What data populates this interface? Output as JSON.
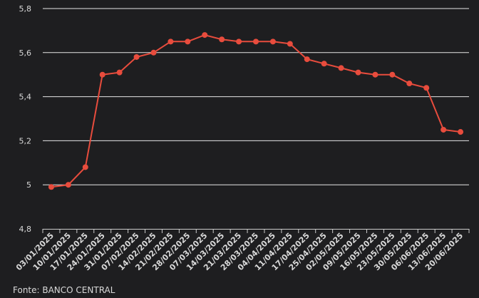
{
  "chart_data": {
    "type": "line",
    "title": "",
    "xlabel": "",
    "ylabel": "",
    "categories": [
      "03/01/2025",
      "10/01/2025",
      "17/01/2025",
      "24/01/2025",
      "31/01/2025",
      "07/02/2025",
      "14/02/2025",
      "21/02/2025",
      "28/02/2025",
      "07/03/2025",
      "14/03/2025",
      "21/03/2025",
      "28/03/2025",
      "04/04/2025",
      "11/04/2025",
      "17/04/2025",
      "25/04/2025",
      "02/05/2025",
      "09/05/2025",
      "16/05/2025",
      "23/05/2025",
      "30/05/2025",
      "06/06/2025",
      "13/06/2025",
      "20/06/2025"
    ],
    "series": [
      {
        "values": [
          4.99,
          5.0,
          5.08,
          5.5,
          5.51,
          5.58,
          5.6,
          5.65,
          5.65,
          5.68,
          5.66,
          5.65,
          5.65,
          5.65,
          5.64,
          5.57,
          5.55,
          5.53,
          5.51,
          5.5,
          5.5,
          5.46,
          5.44,
          5.25,
          5.24
        ],
        "color": "#e84c3d"
      }
    ],
    "ylim": [
      4.8,
      5.8
    ],
    "yticks": [
      4.8,
      5,
      5.2,
      5.4,
      5.6,
      5.8
    ],
    "ytick_labels": [
      "4,8",
      "5",
      "5,2",
      "5,4",
      "5,6",
      "5,8"
    ],
    "grid": true,
    "legend": "none",
    "colors": {
      "background": "#1e1e20",
      "grid": "#e6e6e6",
      "tick_text": "#d9d9d9",
      "x_axis": "#cccccc"
    }
  },
  "source_label": "Fonte: BANCO CENTRAL"
}
